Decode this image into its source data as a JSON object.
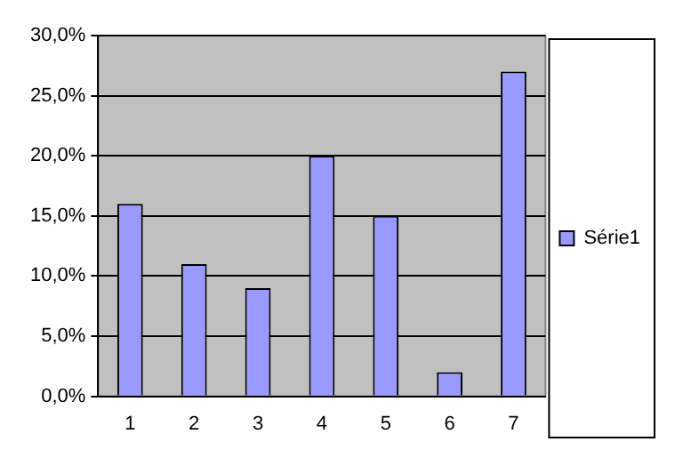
{
  "chart_data": {
    "type": "bar",
    "categories": [
      "1",
      "2",
      "3",
      "4",
      "5",
      "6",
      "7"
    ],
    "series": [
      {
        "name": "Série1",
        "color": "#9999ff",
        "values": [
          16,
          11,
          9,
          20,
          15,
          2,
          27
        ]
      }
    ],
    "ylim": [
      0,
      30
    ],
    "yticks": [
      {
        "value": 0,
        "label": "0,0%"
      },
      {
        "value": 5,
        "label": "5,0%"
      },
      {
        "value": 10,
        "label": "10,0%"
      },
      {
        "value": 15,
        "label": "15,0%"
      },
      {
        "value": 20,
        "label": "20,0%"
      },
      {
        "value": 25,
        "label": "25,0%"
      },
      {
        "value": 30,
        "label": "30,0%"
      }
    ],
    "grid": "y",
    "legend": "right"
  }
}
